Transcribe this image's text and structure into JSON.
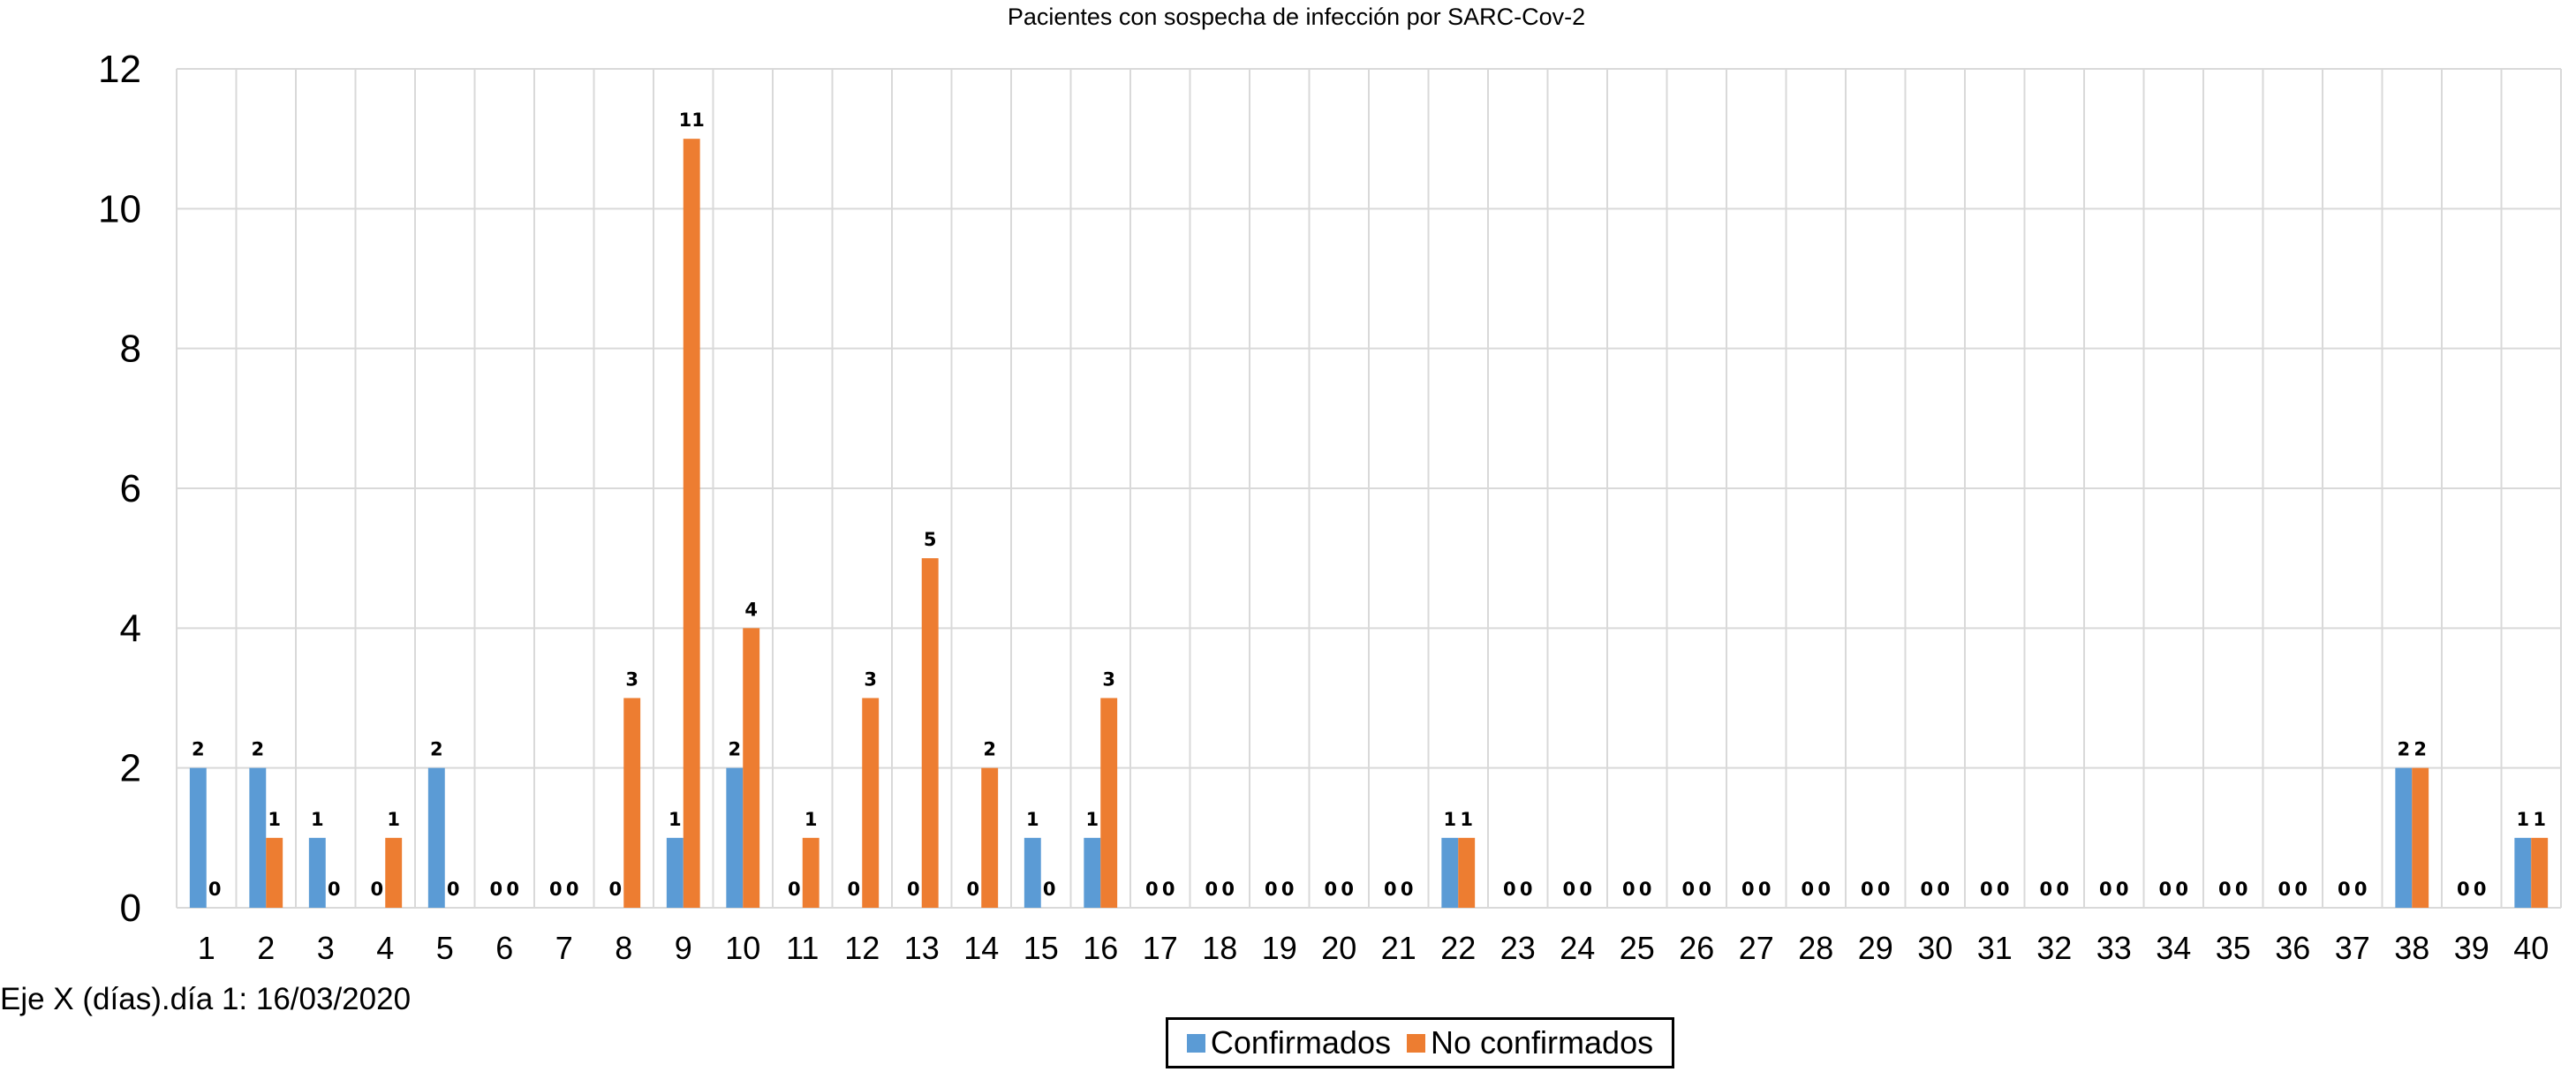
{
  "chart_data": {
    "type": "bar",
    "title": "Pacientes con sospecha de infección por SARC-Cov-2",
    "xlabel": "Eje X (días).día 1: 16/03/2020",
    "ylabel": "",
    "ylim": [
      0,
      12
    ],
    "yticks": [
      "0",
      "2",
      "4",
      "6",
      "8",
      "10",
      "12"
    ],
    "grid": true,
    "legend_position": "bottom",
    "categories": [
      "1",
      "2",
      "3",
      "4",
      "5",
      "6",
      "7",
      "8",
      "9",
      "10",
      "11",
      "12",
      "13",
      "14",
      "15",
      "16",
      "17",
      "18",
      "19",
      "20",
      "21",
      "22",
      "23",
      "24",
      "25",
      "26",
      "27",
      "28",
      "29",
      "30",
      "31",
      "32",
      "33",
      "34",
      "35",
      "36",
      "37",
      "38",
      "39",
      "40"
    ],
    "series": [
      {
        "name": "Confirmados",
        "color": "#5b9bd5",
        "values": [
          2,
          2,
          1,
          0,
          2,
          0,
          0,
          0,
          1,
          2,
          0,
          0,
          0,
          0,
          1,
          1,
          0,
          0,
          0,
          0,
          0,
          1,
          0,
          0,
          0,
          0,
          0,
          0,
          0,
          0,
          0,
          0,
          0,
          0,
          0,
          0,
          0,
          2,
          0,
          1
        ]
      },
      {
        "name": "No confirmados",
        "color": "#ed7d31",
        "values": [
          0,
          1,
          0,
          1,
          0,
          0,
          0,
          3,
          11,
          4,
          1,
          3,
          5,
          2,
          0,
          3,
          0,
          0,
          0,
          0,
          0,
          1,
          0,
          0,
          0,
          0,
          0,
          0,
          0,
          0,
          0,
          0,
          0,
          0,
          0,
          0,
          0,
          2,
          0,
          1
        ]
      }
    ]
  }
}
